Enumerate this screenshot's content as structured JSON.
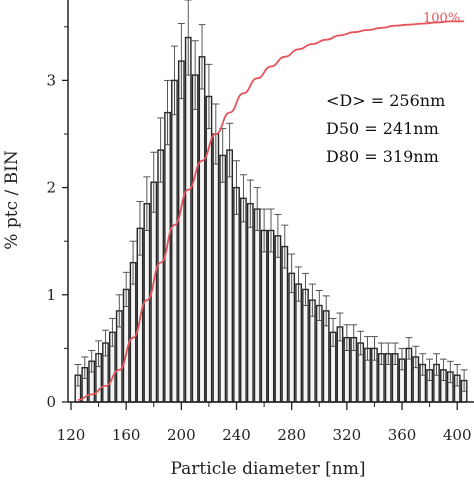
{
  "chart_data": {
    "type": "bar",
    "xlabel": "Particle diameter [nm]",
    "ylabel": "% ptc / BIN",
    "xlim": [
      120,
      410
    ],
    "ylim": [
      0,
      3.75
    ],
    "xticks": [
      "120",
      "160",
      "200",
      "240",
      "280",
      "320",
      "360",
      "400"
    ],
    "yticks": [
      "0",
      "1",
      "2",
      "3"
    ],
    "bin_width": 5,
    "series": [
      {
        "type": "bar",
        "x": [
          125,
          130,
          135,
          140,
          145,
          150,
          155,
          160,
          165,
          170,
          175,
          180,
          185,
          190,
          195,
          200,
          205,
          210,
          215,
          220,
          225,
          230,
          235,
          240,
          245,
          250,
          255,
          260,
          265,
          270,
          275,
          280,
          285,
          290,
          295,
          300,
          305,
          310,
          315,
          320,
          325,
          330,
          335,
          340,
          345,
          350,
          355,
          360,
          365,
          370,
          375,
          380,
          385,
          390,
          395,
          400,
          405
        ],
        "values": [
          0.25,
          0.32,
          0.38,
          0.45,
          0.55,
          0.65,
          0.85,
          1.05,
          1.3,
          1.62,
          1.85,
          2.05,
          2.35,
          2.7,
          3.0,
          3.18,
          3.4,
          3.05,
          3.22,
          2.85,
          2.5,
          2.3,
          2.35,
          2.0,
          1.9,
          1.85,
          1.8,
          1.6,
          1.6,
          1.55,
          1.45,
          1.2,
          1.1,
          1.05,
          0.95,
          0.9,
          0.85,
          0.65,
          0.7,
          0.6,
          0.6,
          0.55,
          0.5,
          0.5,
          0.45,
          0.45,
          0.45,
          0.4,
          0.5,
          0.42,
          0.35,
          0.3,
          0.35,
          0.3,
          0.28,
          0.25,
          0.2
        ],
        "errors": [
          0.1,
          0.1,
          0.1,
          0.12,
          0.12,
          0.13,
          0.15,
          0.16,
          0.2,
          0.25,
          0.25,
          0.28,
          0.3,
          0.3,
          0.32,
          0.35,
          0.35,
          0.32,
          0.3,
          0.3,
          0.28,
          0.25,
          0.25,
          0.25,
          0.22,
          0.22,
          0.2,
          0.2,
          0.2,
          0.2,
          0.2,
          0.18,
          0.16,
          0.15,
          0.15,
          0.14,
          0.14,
          0.13,
          0.13,
          0.12,
          0.12,
          0.11,
          0.11,
          0.11,
          0.1,
          0.1,
          0.1,
          0.1,
          0.1,
          0.1,
          0.1,
          0.1,
          0.1,
          0.1,
          0.1,
          0.1,
          0.1
        ]
      },
      {
        "type": "line",
        "color": "#e5545a",
        "label": "100%",
        "x": [
          125,
          135,
          145,
          155,
          165,
          175,
          185,
          195,
          205,
          215,
          225,
          235,
          245,
          255,
          265,
          275,
          285,
          295,
          305,
          315,
          325,
          335,
          345,
          355,
          365,
          375,
          385,
          395,
          405
        ],
        "values": [
          0.02,
          0.07,
          0.15,
          0.3,
          0.6,
          0.95,
          1.3,
          1.65,
          1.98,
          2.25,
          2.5,
          2.7,
          2.88,
          3.02,
          3.13,
          3.22,
          3.29,
          3.34,
          3.38,
          3.42,
          3.45,
          3.47,
          3.49,
          3.51,
          3.52,
          3.53,
          3.54,
          3.55,
          3.55
        ]
      }
    ],
    "annotations": [
      "<D> = 256nm",
      "D50 = 241nm",
      "D80 = 319nm"
    ]
  }
}
